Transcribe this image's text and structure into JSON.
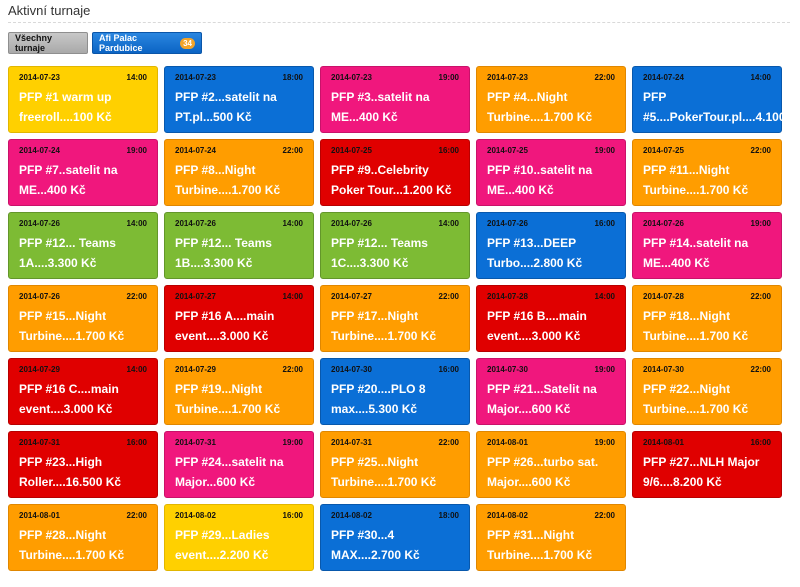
{
  "page": {
    "title": "Aktivní turnaje"
  },
  "filters": {
    "all_label": "Všechny turnaje",
    "venue_label": "Afi Palac Pardubice",
    "venue_count": "34"
  },
  "colors": {
    "yellow": "#ffd000",
    "blue": "#0b6fd6",
    "pink": "#f0177d",
    "orange": "#ff9d00",
    "red": "#e00000",
    "green": "#7dbb34"
  },
  "cards": [
    {
      "date": "2014-07-23",
      "time": "14:00",
      "name": "PFP #1 warm up\nfreeroll....100 Kč",
      "color": "yellow"
    },
    {
      "date": "2014-07-23",
      "time": "18:00",
      "name": "PFP #2...satelit na\nPT.pl...500 Kč",
      "color": "blue"
    },
    {
      "date": "2014-07-23",
      "time": "19:00",
      "name": "PFP #3..satelit na\nME...400 Kč",
      "color": "pink"
    },
    {
      "date": "2014-07-23",
      "time": "22:00",
      "name": "PFP #4...Night\nTurbine....1.700 Kč",
      "color": "orange"
    },
    {
      "date": "2014-07-24",
      "time": "14:00",
      "name": "PFP\n#5....PokerTour.pl....4.100",
      "color": "blue"
    },
    {
      "date": "2014-07-24",
      "time": "19:00",
      "name": "PFP #7..satelit na\nME...400 Kč",
      "color": "pink"
    },
    {
      "date": "2014-07-24",
      "time": "22:00",
      "name": "PFP #8...Night\nTurbine....1.700 Kč",
      "color": "orange"
    },
    {
      "date": "2014-07-25",
      "time": "16:00",
      "name": "PFP #9..Celebrity\nPoker Tour...1.200 Kč",
      "color": "red"
    },
    {
      "date": "2014-07-25",
      "time": "19:00",
      "name": "PFP #10..satelit na\nME...400 Kč",
      "color": "pink"
    },
    {
      "date": "2014-07-25",
      "time": "22:00",
      "name": "PFP #11...Night\nTurbine....1.700 Kč",
      "color": "orange"
    },
    {
      "date": "2014-07-26",
      "time": "14:00",
      "name": "PFP #12... Teams\n1A....3.300 Kč",
      "color": "green"
    },
    {
      "date": "2014-07-26",
      "time": "14:00",
      "name": "PFP #12... Teams\n1B....3.300 Kč",
      "color": "green"
    },
    {
      "date": "2014-07-26",
      "time": "14:00",
      "name": "PFP #12... Teams\n1C....3.300 Kč",
      "color": "green"
    },
    {
      "date": "2014-07-26",
      "time": "16:00",
      "name": "PFP #13...DEEP\nTurbo....2.800 Kč",
      "color": "blue"
    },
    {
      "date": "2014-07-26",
      "time": "19:00",
      "name": "PFP #14..satelit na\nME...400 Kč",
      "color": "pink"
    },
    {
      "date": "2014-07-26",
      "time": "22:00",
      "name": "PFP #15...Night\nTurbine....1.700 Kč",
      "color": "orange"
    },
    {
      "date": "2014-07-27",
      "time": "14:00",
      "name": "PFP #16 A....main\nevent....3.000 Kč",
      "color": "red"
    },
    {
      "date": "2014-07-27",
      "time": "22:00",
      "name": "PFP #17...Night\nTurbine....1.700 Kč",
      "color": "orange"
    },
    {
      "date": "2014-07-28",
      "time": "14:00",
      "name": "PFP #16 B....main\nevent....3.000 Kč",
      "color": "red"
    },
    {
      "date": "2014-07-28",
      "time": "22:00",
      "name": "PFP #18...Night\nTurbine....1.700 Kč",
      "color": "orange"
    },
    {
      "date": "2014-07-29",
      "time": "14:00",
      "name": "PFP #16 C....main\nevent....3.000 Kč",
      "color": "red"
    },
    {
      "date": "2014-07-29",
      "time": "22:00",
      "name": "PFP #19...Night\nTurbine....1.700 Kč",
      "color": "orange"
    },
    {
      "date": "2014-07-30",
      "time": "16:00",
      "name": "PFP #20....PLO 8\nmax....5.300 Kč",
      "color": "blue"
    },
    {
      "date": "2014-07-30",
      "time": "19:00",
      "name": "PFP #21...Satelit na\nMajor....600 Kč",
      "color": "pink"
    },
    {
      "date": "2014-07-30",
      "time": "22:00",
      "name": "PFP #22...Night\nTurbine....1.700 Kč",
      "color": "orange"
    },
    {
      "date": "2014-07-31",
      "time": "16:00",
      "name": "PFP #23...High\nRoller....16.500 Kč",
      "color": "red"
    },
    {
      "date": "2014-07-31",
      "time": "19:00",
      "name": "PFP #24...satelit na\nMajor...600 Kč",
      "color": "pink"
    },
    {
      "date": "2014-07-31",
      "time": "22:00",
      "name": "PFP #25...Night\nTurbine....1.700 Kč",
      "color": "orange"
    },
    {
      "date": "2014-08-01",
      "time": "19:00",
      "name": "PFP #26...turbo sat.\nMajor....600 Kč",
      "color": "orange"
    },
    {
      "date": "2014-08-01",
      "time": "16:00",
      "name": "PFP #27...NLH Major\n9/6....8.200 Kč",
      "color": "red"
    },
    {
      "date": "2014-08-01",
      "time": "22:00",
      "name": "PFP #28...Night\nTurbine....1.700 Kč",
      "color": "orange"
    },
    {
      "date": "2014-08-02",
      "time": "16:00",
      "name": "PFP #29...Ladies\nevent....2.200 Kč",
      "color": "yellow"
    },
    {
      "date": "2014-08-02",
      "time": "18:00",
      "name": "PFP #30...4\nMAX....2.700 Kč",
      "color": "blue"
    },
    {
      "date": "2014-08-02",
      "time": "22:00",
      "name": "PFP #31...Night\nTurbine....1.700 Kč",
      "color": "orange"
    }
  ]
}
